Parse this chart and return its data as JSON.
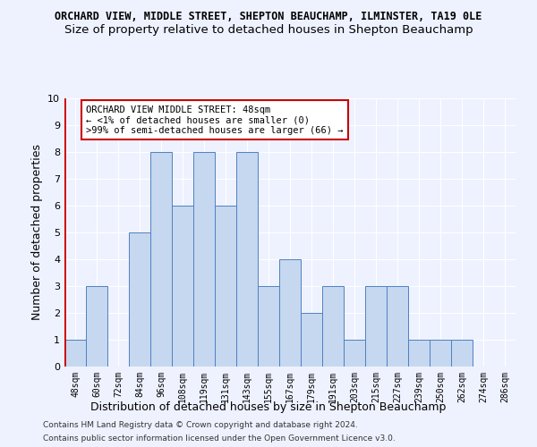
{
  "title": "ORCHARD VIEW, MIDDLE STREET, SHEPTON BEAUCHAMP, ILMINSTER, TA19 0LE",
  "subtitle": "Size of property relative to detached houses in Shepton Beauchamp",
  "xlabel": "Distribution of detached houses by size in Shepton Beauchamp",
  "ylabel": "Number of detached properties",
  "categories": [
    "48sqm",
    "60sqm",
    "72sqm",
    "84sqm",
    "96sqm",
    "108sqm",
    "119sqm",
    "131sqm",
    "143sqm",
    "155sqm",
    "167sqm",
    "179sqm",
    "191sqm",
    "203sqm",
    "215sqm",
    "227sqm",
    "239sqm",
    "250sqm",
    "262sqm",
    "274sqm",
    "286sqm"
  ],
  "values": [
    1,
    3,
    0,
    5,
    8,
    6,
    8,
    6,
    8,
    3,
    4,
    2,
    3,
    1,
    3,
    3,
    1,
    1,
    1,
    0,
    0
  ],
  "bar_color": "#c5d8f0",
  "bar_edge_color": "#5080c0",
  "highlight_index": 0,
  "highlight_color": "#cc0000",
  "annotation_text": "ORCHARD VIEW MIDDLE STREET: 48sqm\n← <1% of detached houses are smaller (0)\n>99% of semi-detached houses are larger (66) →",
  "annotation_box_color": "#ffffff",
  "annotation_box_edge_color": "#cc0000",
  "ylim": [
    0,
    10
  ],
  "yticks": [
    0,
    1,
    2,
    3,
    4,
    5,
    6,
    7,
    8,
    9,
    10
  ],
  "background_color": "#eef2ff",
  "grid_color": "#ffffff",
  "footer_line1": "Contains HM Land Registry data © Crown copyright and database right 2024.",
  "footer_line2": "Contains public sector information licensed under the Open Government Licence v3.0.",
  "title_fontsize": 8.5,
  "subtitle_fontsize": 9.5,
  "xlabel_fontsize": 9,
  "ylabel_fontsize": 9,
  "tick_fontsize": 7
}
